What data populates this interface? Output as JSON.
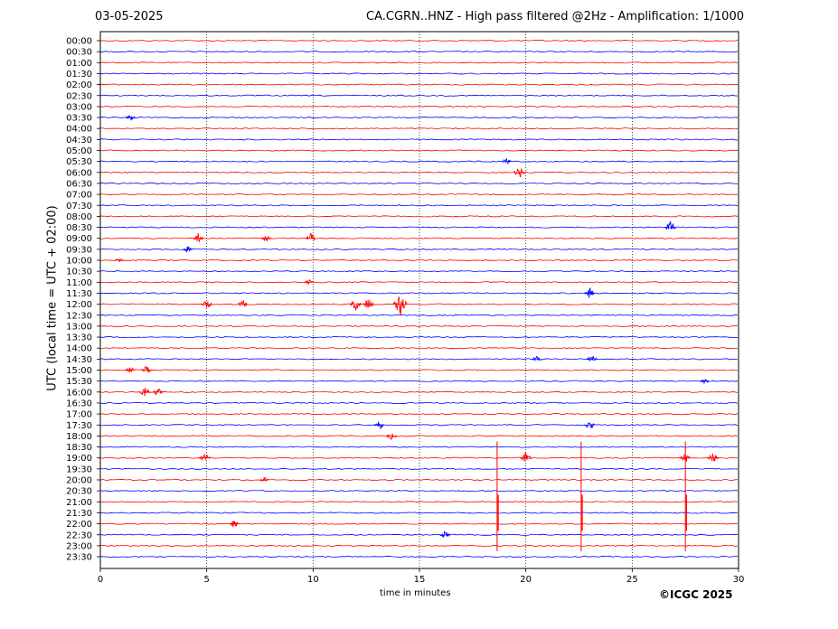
{
  "header": {
    "date": "03-05-2025",
    "title": "CA.CGRN..HNZ - High pass filtered @2Hz - Amplification: 1/1000"
  },
  "footer": {
    "copyright": "©ICGC 2025"
  },
  "chart_data": {
    "type": "line",
    "title": "CA.CGRN..HNZ - High pass filtered @2Hz - Amplification: 1/1000",
    "xlabel": "time in minutes",
    "ylabel": "UTC (local time = UTC + 02:00)",
    "xlim": [
      0,
      30
    ],
    "xticks": [
      0,
      5,
      10,
      15,
      20,
      25,
      30
    ],
    "grid": "vertical dotted lines at 5-minute ticks",
    "colors": {
      "even_rows": "#ff0000",
      "odd_rows": "#0000ff"
    },
    "rows": [
      "00:00",
      "00:30",
      "01:00",
      "01:30",
      "02:00",
      "02:30",
      "03:00",
      "03:30",
      "04:00",
      "04:30",
      "05:00",
      "05:30",
      "06:00",
      "06:30",
      "07:00",
      "07:30",
      "08:00",
      "08:30",
      "09:00",
      "09:30",
      "10:00",
      "10:30",
      "11:00",
      "11:30",
      "12:00",
      "12:30",
      "13:00",
      "13:30",
      "14:00",
      "14:30",
      "15:00",
      "15:30",
      "16:00",
      "16:30",
      "17:00",
      "17:30",
      "18:00",
      "18:30",
      "19:00",
      "19:30",
      "20:00",
      "20:30",
      "21:00",
      "21:30",
      "22:00",
      "22:30",
      "23:00",
      "23:30"
    ],
    "events": [
      {
        "row": "03:30",
        "minute": 1.4,
        "amp": 0.35
      },
      {
        "row": "05:30",
        "minute": 19.1,
        "amp": 0.35
      },
      {
        "row": "06:00",
        "minute": 19.7,
        "amp": 0.6
      },
      {
        "row": "08:30",
        "minute": 26.8,
        "amp": 0.6
      },
      {
        "row": "09:00",
        "minute": 4.6,
        "amp": 0.5
      },
      {
        "row": "09:00",
        "minute": 7.8,
        "amp": 0.4
      },
      {
        "row": "09:00",
        "minute": 9.9,
        "amp": 0.5
      },
      {
        "row": "09:30",
        "minute": 4.1,
        "amp": 0.3
      },
      {
        "row": "10:00",
        "minute": 0.9,
        "amp": 0.3
      },
      {
        "row": "11:00",
        "minute": 9.8,
        "amp": 0.3
      },
      {
        "row": "11:30",
        "minute": 23.0,
        "amp": 0.5
      },
      {
        "row": "12:00",
        "minute": 5.0,
        "amp": 0.5
      },
      {
        "row": "12:00",
        "minute": 6.7,
        "amp": 0.4
      },
      {
        "row": "12:00",
        "minute": 12.0,
        "amp": 0.6
      },
      {
        "row": "12:00",
        "minute": 12.6,
        "amp": 0.6
      },
      {
        "row": "12:00",
        "minute": 14.1,
        "amp": 1.1
      },
      {
        "row": "14:30",
        "minute": 23.1,
        "amp": 0.5
      },
      {
        "row": "14:30",
        "minute": 20.5,
        "amp": 0.3
      },
      {
        "row": "15:00",
        "minute": 2.2,
        "amp": 0.5
      },
      {
        "row": "15:00",
        "minute": 1.4,
        "amp": 0.4
      },
      {
        "row": "15:30",
        "minute": 28.4,
        "amp": 0.3
      },
      {
        "row": "16:00",
        "minute": 2.1,
        "amp": 0.6
      },
      {
        "row": "16:00",
        "minute": 2.7,
        "amp": 0.4
      },
      {
        "row": "17:30",
        "minute": 13.1,
        "amp": 0.5
      },
      {
        "row": "17:30",
        "minute": 23.0,
        "amp": 0.5
      },
      {
        "row": "18:00",
        "minute": 13.7,
        "amp": 0.5
      },
      {
        "row": "19:00",
        "minute": 4.9,
        "amp": 0.5
      },
      {
        "row": "19:00",
        "minute": 20.0,
        "amp": 0.6
      },
      {
        "row": "19:00",
        "minute": 27.5,
        "amp": 0.5
      },
      {
        "row": "19:00",
        "minute": 28.8,
        "amp": 0.6
      },
      {
        "row": "20:00",
        "minute": 7.7,
        "amp": 0.3
      },
      {
        "row": "22:00",
        "minute": 6.3,
        "amp": 0.4
      },
      {
        "row": "22:30",
        "minute": 16.2,
        "amp": 0.5
      }
    ],
    "large_spikes": [
      {
        "row": "21:30",
        "minute": 18.65,
        "top_row": "18:30",
        "bottom_row": "23:00"
      },
      {
        "row": "21:30",
        "minute": 22.6,
        "top_row": "18:30",
        "bottom_row": "23:00"
      },
      {
        "row": "21:30",
        "minute": 27.5,
        "top_row": "18:30",
        "bottom_row": "23:00"
      }
    ]
  }
}
